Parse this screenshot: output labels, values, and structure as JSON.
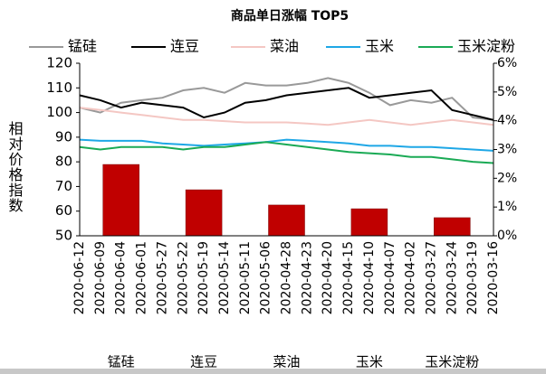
{
  "chart_data": [
    {
      "type": "line",
      "title": "商品单日涨幅 TOP5",
      "y_label": "相对价格指数",
      "categories": [
        "2020-06-12",
        "2020-06-09",
        "2020-06-04",
        "2020-06-01",
        "2020-05-27",
        "2020-05-22",
        "2020-05-19",
        "2020-05-14",
        "2020-05-11",
        "2020-05-06",
        "2020-04-28",
        "2020-04-23",
        "2020-04-20",
        "2020-04-15",
        "2020-04-10",
        "2020-04-07",
        "2020-04-02",
        "2020-03-27",
        "2020-03-24",
        "2020-03-19",
        "2020-03-16"
      ],
      "series": [
        {
          "name": "锰硅",
          "color": "#999999",
          "values": [
            102,
            100,
            104,
            105,
            106,
            109,
            110,
            108,
            112,
            111,
            111,
            112,
            114,
            112,
            108,
            103,
            105,
            104,
            106,
            98,
            97
          ]
        },
        {
          "name": "连豆",
          "color": "#000000",
          "values": [
            107,
            105,
            102,
            104,
            103,
            102,
            98,
            100,
            104,
            105,
            107,
            108,
            109,
            110,
            106,
            107,
            108,
            109,
            101,
            99,
            97
          ]
        },
        {
          "name": "菜油",
          "color": "#f4c7c3",
          "values": [
            102,
            101,
            100,
            99,
            98,
            97,
            97,
            96.5,
            96,
            96,
            96,
            95.5,
            95,
            96,
            97,
            96,
            95,
            96,
            97,
            96,
            95
          ]
        },
        {
          "name": "玉米",
          "color": "#1ea7e6",
          "values": [
            89,
            88.5,
            88.5,
            88.5,
            87.5,
            87,
            86.5,
            87,
            87.5,
            88,
            89,
            88.5,
            88,
            87.5,
            86.5,
            86.5,
            86,
            86,
            85.5,
            85,
            84.5
          ]
        },
        {
          "name": "玉米淀粉",
          "color": "#1aaa55",
          "values": [
            86,
            85,
            86,
            86,
            86,
            85,
            86,
            86,
            87,
            88,
            87,
            86,
            85,
            84,
            83.5,
            83,
            82,
            82,
            81,
            80,
            79.5
          ]
        }
      ],
      "ylim": [
        50,
        120
      ],
      "yticks": [
        50,
        60,
        70,
        80,
        90,
        100,
        110,
        120
      ],
      "legend": "top",
      "grid": false
    },
    {
      "type": "bar",
      "categories": [
        "锰硅",
        "连豆",
        "菜油",
        "玉米",
        "玉米淀粉"
      ],
      "values": [
        2.48,
        1.6,
        1.07,
        0.94,
        0.63
      ],
      "color": "#c00000",
      "ylim": [
        0,
        6
      ],
      "yticks": [
        {
          "value": 0,
          "label": "0%"
        },
        {
          "value": 1,
          "label": "1%"
        },
        {
          "value": 2,
          "label": "2%"
        },
        {
          "value": 3,
          "label": "3%"
        },
        {
          "value": 4,
          "label": "4%"
        },
        {
          "value": 5,
          "label": "5%"
        },
        {
          "value": 6,
          "label": "6%"
        }
      ]
    }
  ]
}
